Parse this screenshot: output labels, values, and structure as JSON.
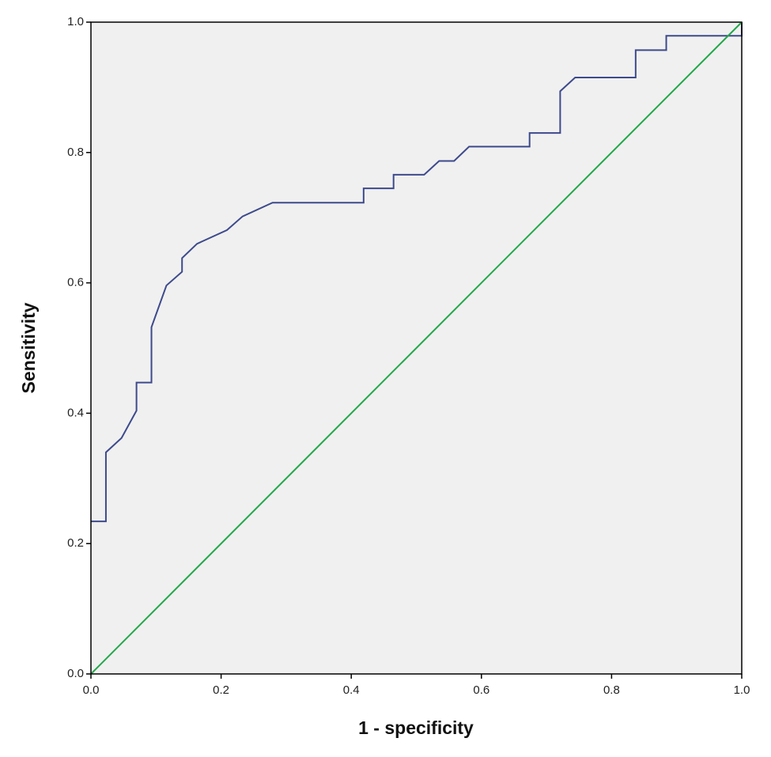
{
  "chart_data": {
    "type": "line",
    "xlabel": "1 - specificity",
    "ylabel": "Sensitivity",
    "xlim": [
      0,
      1
    ],
    "ylim": [
      0,
      1
    ],
    "xticks": [
      {
        "value": 0,
        "label": "0.0"
      },
      0.2,
      0.4,
      0.6,
      0.8,
      {
        "value": 1,
        "label": "1.0"
      }
    ],
    "yticks": [
      {
        "value": 0,
        "label": "0.0"
      },
      0.2,
      0.4,
      0.6,
      0.8,
      {
        "value": 1,
        "label": "1.0"
      }
    ],
    "grid": false,
    "series": [
      {
        "color": "#3d4a8c",
        "x": [
          0,
          0.023,
          0.023,
          0.047,
          0.07,
          0.07,
          0.093,
          0.093,
          0.116,
          0.14,
          0.14,
          0.163,
          0.209,
          0.233,
          0.279,
          0.419,
          0.419,
          0.465,
          0.465,
          0.512,
          0.535,
          0.558,
          0.581,
          0.674,
          0.674,
          0.721,
          0.721,
          0.744,
          0.837,
          0.837,
          0.884,
          0.884,
          1,
          1
        ],
        "values": [
          0.234,
          0.234,
          0.34,
          0.362,
          0.404,
          0.447,
          0.447,
          0.532,
          0.596,
          0.617,
          0.638,
          0.66,
          0.681,
          0.702,
          0.723,
          0.723,
          0.745,
          0.745,
          0.766,
          0.766,
          0.787,
          0.787,
          0.809,
          0.809,
          0.83,
          0.83,
          0.894,
          0.915,
          0.915,
          0.957,
          0.957,
          0.979,
          0.979,
          1
        ]
      },
      {
        "color": "#22a84a",
        "x": [
          0,
          1
        ],
        "values": [
          0,
          1
        ]
      }
    ]
  }
}
